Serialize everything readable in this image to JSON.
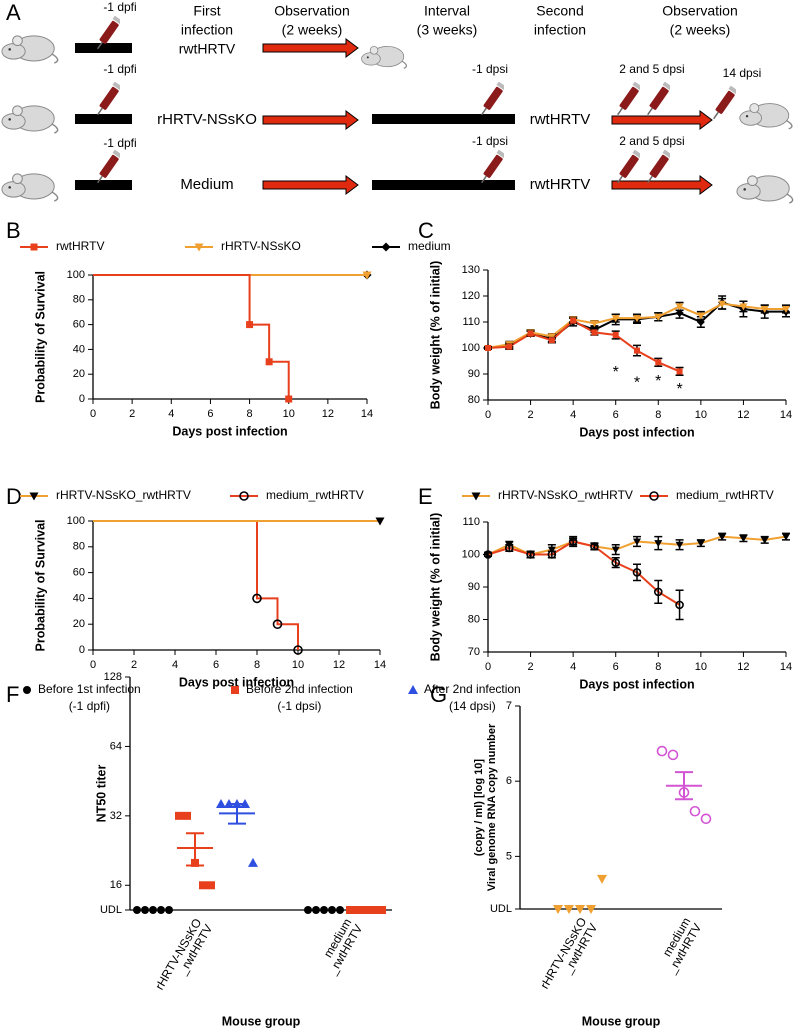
{
  "panel_labels": [
    "A",
    "B",
    "C",
    "D",
    "E",
    "F",
    "G"
  ],
  "schematic": {
    "headers": [
      [
        "First",
        "infection"
      ],
      [
        "Observation",
        "(2 weeks)"
      ],
      [
        "Interval",
        "(3 weeks)"
      ],
      [
        "Second",
        "infection"
      ],
      [
        "Observation",
        "(2 weeks)"
      ]
    ],
    "rows": [
      {
        "pre_sample": "-1 dpfi",
        "first": "rwtHRTV"
      },
      {
        "pre_sample": "-1 dpfi",
        "first": "rHRTV-NSsKO",
        "interval_sample": "-1 dpsi",
        "second": "rwtHRTV",
        "post_samples": "2 and 5 dpsi",
        "end_sample": "14 dpsi"
      },
      {
        "pre_sample": "-1 dpfi",
        "first": "Medium",
        "interval_sample": "-1 dpsi",
        "second": "rwtHRTV",
        "post_samples": "2 and 5 dpsi"
      }
    ]
  },
  "chart_data": [
    {
      "type": "survival",
      "xlabel": "Days post infection",
      "ylabel": "Probability of Survival",
      "xlim": [
        0,
        14
      ],
      "xticks": [
        0,
        2,
        4,
        6,
        8,
        10,
        12,
        14
      ],
      "ylim": [
        0,
        100
      ],
      "yticks": [
        0,
        20,
        40,
        60,
        80,
        100
      ],
      "legend": "top",
      "series": [
        {
          "name": "rwtHRTV",
          "color": "#e8401c",
          "marker": "square",
          "x": [
            0,
            8,
            9,
            10
          ],
          "values": [
            100,
            60,
            30,
            0
          ]
        },
        {
          "name": "rHRTV-NSsKO",
          "color": "#f0a030",
          "marker": "triangle-down",
          "x": [
            0,
            14
          ],
          "values": [
            100,
            100
          ]
        },
        {
          "name": "medium",
          "color": "#000000",
          "marker": "diamond",
          "x": [
            0,
            14
          ],
          "values": [
            100,
            100
          ]
        }
      ]
    },
    {
      "type": "line",
      "xlabel": "Days post infection",
      "ylabel": "Body weight (% of initial)",
      "xlim": [
        0,
        14
      ],
      "xticks": [
        0,
        2,
        4,
        6,
        8,
        10,
        12,
        14
      ],
      "ylim": [
        80,
        130
      ],
      "yticks": [
        80,
        90,
        100,
        110,
        120,
        130
      ],
      "x": [
        0,
        1,
        2,
        3,
        4,
        5,
        6,
        7,
        8,
        9,
        10,
        11,
        12,
        13,
        14
      ],
      "series": [
        {
          "name": "medium",
          "color": "#000000",
          "marker": "diamond",
          "values": [
            100,
            101,
            105.5,
            103.5,
            110,
            107,
            111,
            111,
            112,
            113.5,
            110,
            117.5,
            115,
            114,
            114
          ],
          "errors": [
            0.5,
            1,
            1,
            1,
            1.5,
            1,
            2,
            1.5,
            1.5,
            2,
            2,
            2.5,
            3,
            2.5,
            2
          ]
        },
        {
          "name": "rHRTV-NSsKO",
          "color": "#f0a030",
          "marker": "triangle-down",
          "values": [
            100,
            101.5,
            106,
            104.5,
            111,
            109.5,
            111.5,
            111.5,
            112,
            116,
            112.5,
            117,
            116,
            115,
            115
          ],
          "errors": [
            0.5,
            1,
            1,
            1,
            1,
            1,
            1.5,
            1.5,
            1.5,
            1.5,
            1.5,
            2,
            2,
            1.5,
            1.5
          ]
        },
        {
          "name": "rwtHRTV",
          "color": "#e8401c",
          "marker": "square",
          "values": [
            100,
            100.5,
            105.5,
            103,
            110.5,
            106,
            105,
            99,
            94.5,
            91,
            null,
            null,
            null,
            null,
            null
          ],
          "errors": [
            0.5,
            1,
            1,
            1,
            1,
            1,
            1.5,
            2,
            1.5,
            1.5,
            null,
            null,
            null,
            null,
            null
          ]
        }
      ],
      "annotations": [
        {
          "text": "*",
          "x": 6,
          "y": 90.5,
          "color": "#e8401c"
        },
        {
          "text": "*",
          "x": 7,
          "y": 86.5,
          "color": "#e8401c"
        },
        {
          "text": "*",
          "x": 8,
          "y": 87,
          "color": "#e8401c"
        },
        {
          "text": "*",
          "x": 9,
          "y": 84,
          "color": "#e8401c"
        }
      ]
    },
    {
      "type": "survival",
      "xlabel": "Days post infection",
      "ylabel": "Probability of Survival",
      "xlim": [
        0,
        14
      ],
      "xticks": [
        0,
        2,
        4,
        6,
        8,
        10,
        12,
        14
      ],
      "ylim": [
        0,
        100
      ],
      "yticks": [
        0,
        20,
        40,
        60,
        80,
        100
      ],
      "legend": "top",
      "series": [
        {
          "name": "rHRTV-NSsKO_rwtHRTV",
          "color": "#f0a030",
          "marker": "triangle-down",
          "marker_color": "#000000",
          "x": [
            0,
            14
          ],
          "values": [
            100,
            100
          ]
        },
        {
          "name": "medium_rwtHRTV",
          "color": "#e8401c",
          "marker": "circle-open",
          "marker_color": "#000000",
          "x": [
            0,
            8,
            9,
            10
          ],
          "values": [
            100,
            40,
            20,
            0
          ]
        }
      ]
    },
    {
      "type": "line",
      "xlabel": "Days post infection",
      "ylabel": "Body weight (% of initial)",
      "xlim": [
        0,
        14
      ],
      "xticks": [
        0,
        2,
        4,
        6,
        8,
        10,
        12,
        14
      ],
      "ylim": [
        70,
        110
      ],
      "yticks": [
        70,
        80,
        90,
        100,
        110
      ],
      "legend": "top",
      "x": [
        0,
        1,
        2,
        3,
        4,
        5,
        6,
        7,
        8,
        9,
        10,
        11,
        12,
        13,
        14
      ],
      "series": [
        {
          "name": "rHRTV-NSsKO_rwtHRTV",
          "color": "#f0a030",
          "marker": "triangle-down",
          "marker_color": "#000000",
          "values": [
            100,
            103,
            100,
            101.5,
            104,
            102.5,
            101.5,
            104,
            103.5,
            103,
            103.5,
            105.5,
            105,
            104.5,
            105.5
          ],
          "errors": [
            0.5,
            1,
            1,
            1.5,
            1.5,
            1,
            1.5,
            1.5,
            2,
            1.5,
            1,
            1,
            1,
            1,
            1
          ]
        },
        {
          "name": "medium_rwtHRTV",
          "color": "#e8401c",
          "marker": "circle-open",
          "marker_color": "#000000",
          "values": [
            100,
            102,
            100,
            100,
            104,
            102.5,
            97.5,
            94.5,
            88.5,
            84.5,
            null,
            null,
            null,
            null,
            null
          ],
          "errors": [
            0.5,
            1,
            1,
            1,
            1,
            1,
            1.5,
            2.5,
            3.5,
            4.5,
            null,
            null,
            null,
            null,
            null
          ]
        }
      ]
    },
    {
      "type": "dot",
      "xlabel": "Mouse group",
      "ylabel": "NT50 titer",
      "log_base": 2,
      "categories": [
        [
          "rHRTV-NSsKO",
          "_rwtHRTV"
        ],
        [
          "medium",
          "_rwtHRTV"
        ]
      ],
      "ylim": [
        12.5,
        128
      ],
      "yticks": [
        {
          "value": 12.5,
          "label": "UDL"
        },
        16,
        32,
        64,
        128
      ],
      "legend": "top",
      "series": [
        {
          "name": "Before 1st infection",
          "detail": "(-1 dpfi)",
          "color": "#000000",
          "marker": "circle",
          "values": [
            [
              12.5,
              12.5,
              12.5,
              12.5,
              12.5
            ],
            [
              12.5,
              12.5,
              12.5,
              12.5,
              12.5
            ]
          ],
          "means": [
            null,
            null
          ],
          "errors": [
            null,
            null
          ]
        },
        {
          "name": "Before 2nd infection",
          "detail": "(-1 dpsi)",
          "color": "#e8401c",
          "marker": "square",
          "values": [
            [
              32,
              32,
              20,
              16,
              16
            ],
            [
              12.5,
              12.5,
              12.5,
              12.5,
              12.5
            ]
          ],
          "means": [
            23.2,
            null
          ],
          "errors": [
            3.7,
            null
          ]
        },
        {
          "name": "After 2nd infection",
          "detail": "(14 dpsi)",
          "color": "#2e4fe0",
          "marker": "triangle-up",
          "values": [
            [
              36,
              36,
              36,
              36,
              20
            ],
            null
          ],
          "means": [
            32.8,
            null
          ],
          "errors": [
            3.2,
            null
          ]
        }
      ]
    },
    {
      "type": "dot",
      "xlabel": "Mouse group",
      "ylabel": [
        "Viral genome RNA copy number",
        "(copy / ml) [log 10]"
      ],
      "categories": [
        [
          "rHRTV-NSsKO",
          "_rwtHRTV"
        ],
        [
          "medium",
          "_rwtHRTV"
        ]
      ],
      "ylim": [
        4.3,
        7
      ],
      "yticks": [
        {
          "value": 4.3,
          "label": "UDL"
        },
        5,
        6,
        7
      ],
      "series": [
        {
          "color": "#f0a030",
          "marker": "triangle-down",
          "values": [
            [
              4.3,
              4.3,
              4.3,
              4.3,
              4.7
            ],
            null
          ],
          "means": [
            null,
            null
          ],
          "errors": [
            null,
            null
          ]
        },
        {
          "color": "#d455d4",
          "marker": "circle-open",
          "values": [
            null,
            [
              6.4,
              6.35,
              5.85,
              5.6,
              5.5
            ]
          ],
          "means": [
            null,
            5.94
          ],
          "errors": [
            null,
            0.18
          ]
        }
      ]
    }
  ]
}
